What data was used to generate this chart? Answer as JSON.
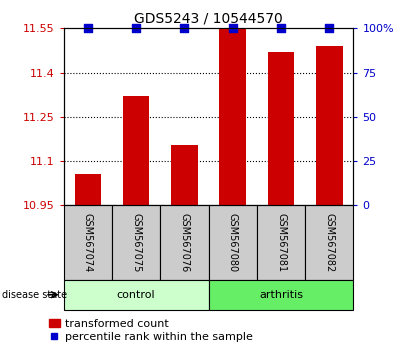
{
  "title": "GDS5243 / 10544570",
  "samples": [
    "GSM567074",
    "GSM567075",
    "GSM567076",
    "GSM567080",
    "GSM567081",
    "GSM567082"
  ],
  "bar_values": [
    11.055,
    11.32,
    11.155,
    11.555,
    11.47,
    11.49
  ],
  "percentile_values": [
    100,
    100,
    100,
    100,
    100,
    100
  ],
  "ylim_left": [
    10.95,
    11.55
  ],
  "ylim_right": [
    0,
    100
  ],
  "yticks_left": [
    10.95,
    11.1,
    11.25,
    11.4,
    11.55
  ],
  "yticks_right": [
    0,
    25,
    50,
    75,
    100
  ],
  "ytick_labels_left": [
    "10.95",
    "11.1",
    "11.25",
    "11.4",
    "11.55"
  ],
  "ytick_labels_right": [
    "0",
    "25",
    "50",
    "75",
    "100%"
  ],
  "bar_color": "#cc0000",
  "dot_color": "#0000cc",
  "control_label": "control",
  "arthritis_label": "arthritis",
  "disease_state_label": "disease state",
  "legend_bar_label": "transformed count",
  "legend_dot_label": "percentile rank within the sample",
  "control_color": "#ccffcc",
  "arthritis_color": "#66ee66",
  "sample_box_color": "#cccccc",
  "bar_width": 0.55,
  "dot_size": 40,
  "title_fontsize": 10,
  "tick_fontsize": 8,
  "label_fontsize": 8,
  "legend_fontsize": 8
}
